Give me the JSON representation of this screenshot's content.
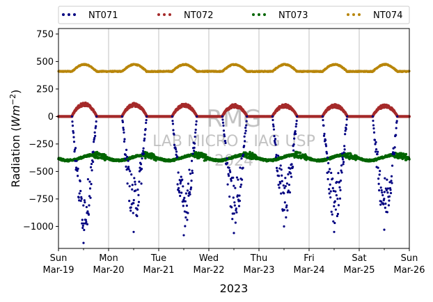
{
  "chart_data": {
    "type": "scatter",
    "xlabel": "2023",
    "ylabel_prefix": "Radiation (",
    "ylabel_unit_base": "Wm",
    "ylabel_unit_exp": "−2",
    "ylabel_suffix": ")",
    "xlim": [
      "2023-03-19",
      "2023-03-26"
    ],
    "ylim": [
      -1200,
      800
    ],
    "yticks": [
      -1000,
      -750,
      -500,
      -250,
      0,
      250,
      500,
      750
    ],
    "ytick_labels": [
      "−1000",
      "−750",
      "−500",
      "−250",
      "0",
      "250",
      "500",
      "750"
    ],
    "xticks": [
      {
        "date": "2023-03-19",
        "day": "Sun",
        "date_label": "Mar-19"
      },
      {
        "date": "2023-03-20",
        "day": "Mon",
        "date_label": "Mar-20"
      },
      {
        "date": "2023-03-21",
        "day": "Tue",
        "date_label": "Mar-21"
      },
      {
        "date": "2023-03-22",
        "day": "Wed",
        "date_label": "Mar-22"
      },
      {
        "date": "2023-03-23",
        "day": "Thu",
        "date_label": "Mar-23"
      },
      {
        "date": "2023-03-24",
        "day": "Fri",
        "date_label": "Mar-24"
      },
      {
        "date": "2023-03-25",
        "day": "Sat",
        "date_label": "Mar-25"
      },
      {
        "date": "2023-03-26",
        "day": "Sun",
        "date_label": "Mar-26"
      }
    ],
    "grid": "vertical",
    "legend_position": "top",
    "watermark": [
      "RMG",
      "LAB MICRO - IAG USP",
      "2024"
    ],
    "series": [
      {
        "name": "NT071",
        "color": "#000080",
        "note": "daily minimum values (W m-2), daytime negative trough",
        "daily_minimum": [
          -1150,
          -1050,
          -1080,
          -1060,
          -1000,
          -1050,
          -1030
        ]
      },
      {
        "name": "NT072",
        "color": "#a52a2a",
        "daily_peak": [
          125,
          120,
          115,
          110,
          110,
          110,
          110
        ]
      },
      {
        "name": "NT073",
        "color": "#006400",
        "baseline_range": [
          -420,
          -330
        ]
      },
      {
        "name": "NT074",
        "color": "#b8860b",
        "daily_range": [
          400,
          480
        ]
      }
    ]
  }
}
